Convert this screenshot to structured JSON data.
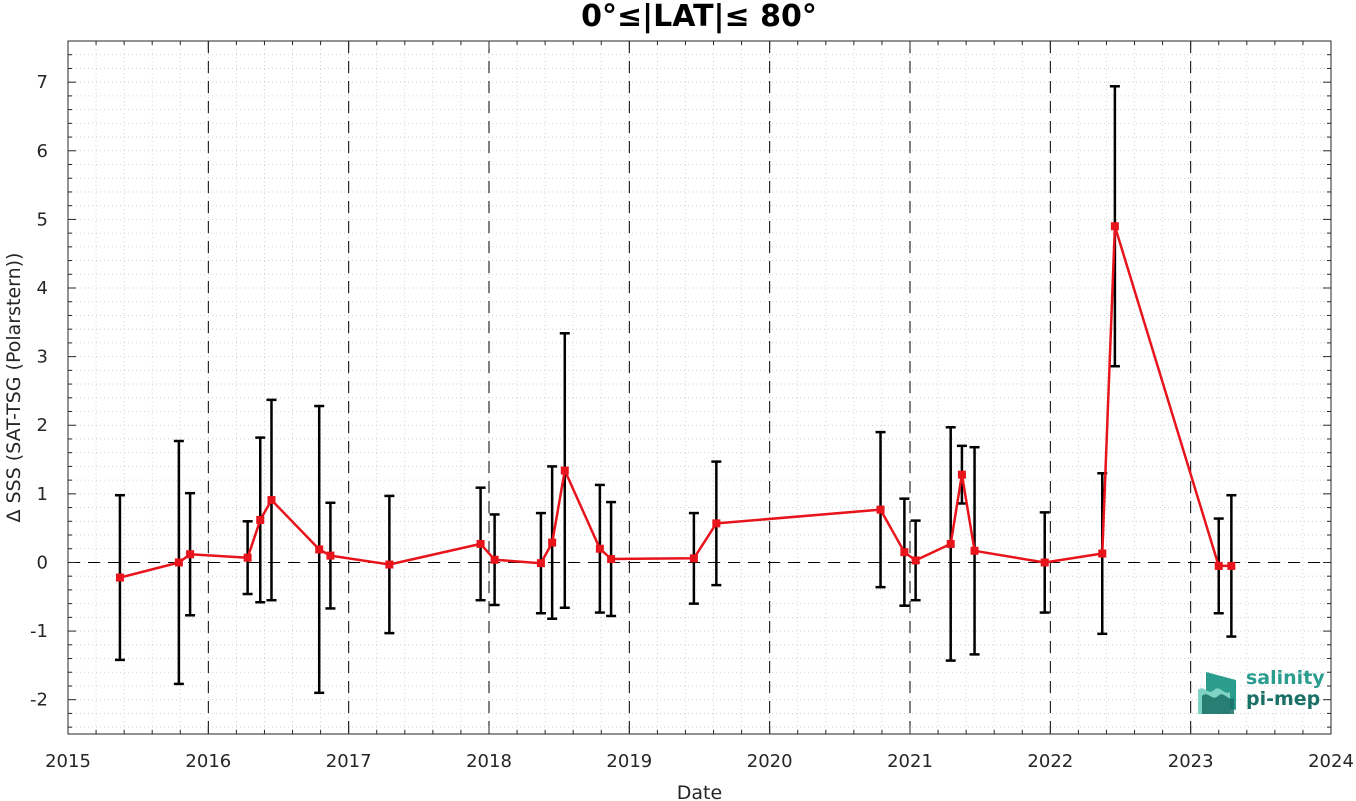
{
  "chart_data": {
    "type": "line",
    "title": "0°≤|LAT|≤ 80°",
    "xlabel": "Date",
    "ylabel": "Δ SSS (SAT-TSG (Polarstern))",
    "xlim": [
      2015,
      2024
    ],
    "ylim": [
      -2.5,
      7.6
    ],
    "x_ticks": [
      "2015",
      "2016",
      "2017",
      "2018",
      "2019",
      "2020",
      "2021",
      "2022",
      "2023",
      "2024"
    ],
    "y_ticks": [
      "-2",
      "-1",
      "0",
      "1",
      "2",
      "3",
      "4",
      "5",
      "6",
      "7"
    ],
    "vertical_dashed_lines_at_years": [
      2016,
      2017,
      2018,
      2019,
      2020,
      2021,
      2022,
      2023
    ],
    "zero_dashed_line": true,
    "grid": "dotted minor grid",
    "series": [
      {
        "color": "#e8141c",
        "marker": "square",
        "errorbar_color": "#000000",
        "points": [
          {
            "x": 2015.37,
            "y": -0.22,
            "err": 1.2
          },
          {
            "x": 2015.79,
            "y": 0.0,
            "err": 1.77
          },
          {
            "x": 2015.87,
            "y": 0.12,
            "err": 0.89
          },
          {
            "x": 2016.28,
            "y": 0.07,
            "err": 0.53
          },
          {
            "x": 2016.37,
            "y": 0.62,
            "err": 1.2
          },
          {
            "x": 2016.45,
            "y": 0.91,
            "err": 1.46
          },
          {
            "x": 2016.79,
            "y": 0.19,
            "err": 2.09
          },
          {
            "x": 2016.87,
            "y": 0.1,
            "err": 0.77
          },
          {
            "x": 2017.29,
            "y": -0.03,
            "err": 1.0
          },
          {
            "x": 2017.94,
            "y": 0.27,
            "err": 0.82
          },
          {
            "x": 2018.04,
            "y": 0.04,
            "err": 0.66
          },
          {
            "x": 2018.37,
            "y": -0.01,
            "err": 0.73
          },
          {
            "x": 2018.45,
            "y": 0.29,
            "err": 1.11
          },
          {
            "x": 2018.54,
            "y": 1.34,
            "err": 2.0
          },
          {
            "x": 2018.79,
            "y": 0.2,
            "err": 0.93
          },
          {
            "x": 2018.87,
            "y": 0.05,
            "err": 0.83
          },
          {
            "x": 2019.46,
            "y": 0.06,
            "err": 0.66
          },
          {
            "x": 2019.62,
            "y": 0.57,
            "err": 0.9
          },
          {
            "x": 2020.79,
            "y": 0.77,
            "err": 1.13
          },
          {
            "x": 2020.96,
            "y": 0.15,
            "err": 0.78
          },
          {
            "x": 2021.04,
            "y": 0.03,
            "err": 0.58
          },
          {
            "x": 2021.29,
            "y": 0.27,
            "err": 1.7
          },
          {
            "x": 2021.37,
            "y": 1.28,
            "err": 0.42
          },
          {
            "x": 2021.46,
            "y": 0.17,
            "err": 1.51
          },
          {
            "x": 2021.96,
            "y": 0.0,
            "err": 0.73
          },
          {
            "x": 2022.37,
            "y": 0.13,
            "err": 1.17
          },
          {
            "x": 2022.46,
            "y": 4.9,
            "err": 2.04
          },
          {
            "x": 2023.2,
            "y": -0.05,
            "err": 0.69
          },
          {
            "x": 2023.29,
            "y": -0.05,
            "err": 1.03
          }
        ]
      }
    ]
  },
  "logo": {
    "line1": "salinity",
    "line2": "pi-mep",
    "colors": [
      "#2a9d8f",
      "#1a6f66",
      "#7fd3c4"
    ]
  }
}
